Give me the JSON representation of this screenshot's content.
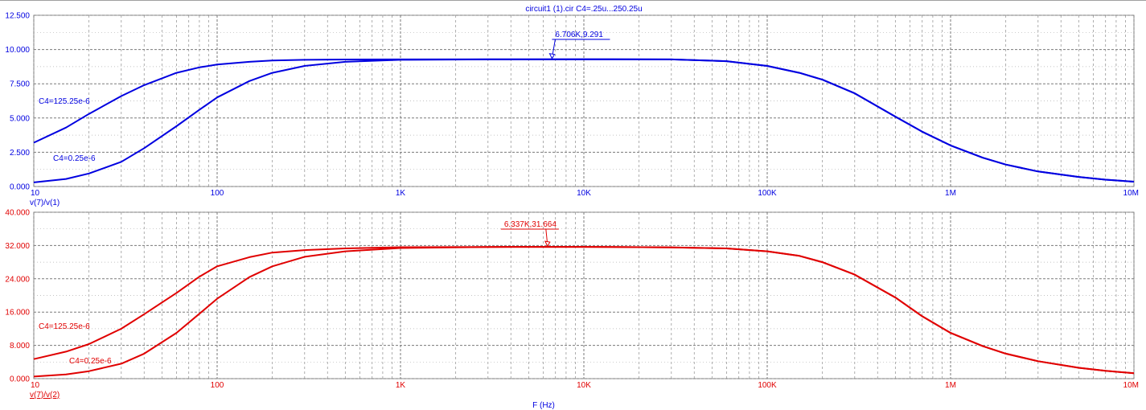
{
  "chart_data": [
    {
      "type": "line",
      "title": "circuit1 (1).cir C4=.25u...250.25u",
      "ylabel": "v(7)/v(1)",
      "xlabel": "",
      "x_scale": "log",
      "xlim": [
        10,
        10000000
      ],
      "ylim": [
        0,
        12.5
      ],
      "grid": true,
      "x_tick_labels": [
        {
          "value": 10,
          "label": "10"
        },
        {
          "value": 100,
          "label": "100"
        },
        {
          "value": 1000,
          "label": "1K"
        },
        {
          "value": 10000,
          "label": "10K"
        },
        {
          "value": 100000,
          "label": "100K"
        },
        {
          "value": 1000000,
          "label": "1M"
        },
        {
          "value": 10000000,
          "label": "10M"
        }
      ],
      "y_tick_labels": [
        {
          "value": 0,
          "label": "0.000"
        },
        {
          "value": 2.5,
          "label": "2.500"
        },
        {
          "value": 5,
          "label": "5.000"
        },
        {
          "value": 7.5,
          "label": "7.500"
        },
        {
          "value": 10,
          "label": "10.000"
        },
        {
          "value": 12.5,
          "label": "12.500"
        }
      ],
      "color": "#0000e0",
      "series": [
        {
          "name": "C4=125.25e-6",
          "x": [
            10,
            15,
            20,
            30,
            40,
            60,
            80,
            100,
            150,
            200,
            300,
            500,
            1000,
            3000,
            10000,
            30000,
            60000,
            100000,
            150000,
            200000,
            300000,
            500000,
            700000,
            1000000,
            1500000,
            2000000,
            3000000,
            5000000,
            7000000,
            10000000
          ],
          "y": [
            3.2,
            4.3,
            5.3,
            6.6,
            7.4,
            8.3,
            8.7,
            8.9,
            9.1,
            9.2,
            9.25,
            9.27,
            9.28,
            9.29,
            9.291,
            9.28,
            9.15,
            8.8,
            8.3,
            7.8,
            6.8,
            5.1,
            4.0,
            3.0,
            2.1,
            1.6,
            1.1,
            0.7,
            0.5,
            0.35
          ]
        },
        {
          "name": "C4=0.25e-6",
          "x": [
            10,
            15,
            20,
            30,
            40,
            60,
            80,
            100,
            150,
            200,
            300,
            500,
            1000,
            3000,
            10000,
            30000,
            60000,
            100000,
            150000,
            200000,
            300000,
            500000,
            700000,
            1000000,
            1500000,
            2000000,
            3000000,
            5000000,
            7000000,
            10000000
          ],
          "y": [
            0.3,
            0.55,
            0.95,
            1.8,
            2.8,
            4.4,
            5.6,
            6.5,
            7.7,
            8.3,
            8.8,
            9.1,
            9.25,
            9.28,
            9.291,
            9.28,
            9.15,
            8.8,
            8.3,
            7.8,
            6.8,
            5.1,
            4.0,
            3.0,
            2.1,
            1.6,
            1.1,
            0.7,
            0.5,
            0.35
          ]
        }
      ],
      "annotations": [
        {
          "text": "6.706K,9.291",
          "x": 6706,
          "y": 9.291
        }
      ]
    },
    {
      "type": "line",
      "title": "",
      "ylabel": "v(7)/v(2)",
      "xlabel": "F (Hz)",
      "x_scale": "log",
      "xlim": [
        10,
        10000000
      ],
      "ylim": [
        0,
        40
      ],
      "grid": true,
      "x_tick_labels": [
        {
          "value": 10,
          "label": "10"
        },
        {
          "value": 100,
          "label": "100"
        },
        {
          "value": 1000,
          "label": "1K"
        },
        {
          "value": 10000,
          "label": "10K"
        },
        {
          "value": 100000,
          "label": "100K"
        },
        {
          "value": 1000000,
          "label": "1M"
        },
        {
          "value": 10000000,
          "label": "10M"
        }
      ],
      "y_tick_labels": [
        {
          "value": 0,
          "label": "0.000"
        },
        {
          "value": 8,
          "label": "8.000"
        },
        {
          "value": 16,
          "label": "16.000"
        },
        {
          "value": 24,
          "label": "24.000"
        },
        {
          "value": 32,
          "label": "32.000"
        },
        {
          "value": 40,
          "label": "40.000"
        }
      ],
      "color": "#e00000",
      "series": [
        {
          "name": "C4=125.25e-6",
          "x": [
            10,
            15,
            20,
            30,
            40,
            60,
            80,
            100,
            150,
            200,
            300,
            500,
            1000,
            3000,
            10000,
            30000,
            60000,
            100000,
            150000,
            200000,
            300000,
            500000,
            700000,
            1000000,
            1500000,
            2000000,
            3000000,
            5000000,
            7000000,
            10000000
          ],
          "y": [
            4.7,
            6.5,
            8.3,
            12.0,
            15.5,
            20.6,
            24.5,
            27.0,
            29.2,
            30.3,
            30.9,
            31.3,
            31.6,
            31.66,
            31.664,
            31.55,
            31.3,
            30.6,
            29.5,
            28.0,
            25.0,
            19.5,
            15.0,
            11.0,
            7.8,
            6.0,
            4.2,
            2.6,
            1.9,
            1.3
          ]
        },
        {
          "name": "C4=0.25e-6",
          "x": [
            10,
            15,
            20,
            30,
            40,
            60,
            80,
            100,
            150,
            200,
            300,
            500,
            1000,
            3000,
            10000,
            30000,
            60000,
            100000,
            150000,
            200000,
            300000,
            500000,
            700000,
            1000000,
            1500000,
            2000000,
            3000000,
            5000000,
            7000000,
            10000000
          ],
          "y": [
            0.5,
            1.0,
            1.8,
            3.6,
            6.0,
            11.0,
            15.6,
            19.2,
            24.4,
            27.0,
            29.3,
            30.6,
            31.4,
            31.66,
            31.664,
            31.55,
            31.3,
            30.6,
            29.5,
            28.0,
            25.0,
            19.5,
            15.0,
            11.0,
            7.8,
            6.0,
            4.2,
            2.6,
            1.9,
            1.3
          ]
        }
      ],
      "annotations": [
        {
          "text": "6.337K,31.664",
          "x": 6337,
          "y": 31.664
        }
      ]
    }
  ]
}
